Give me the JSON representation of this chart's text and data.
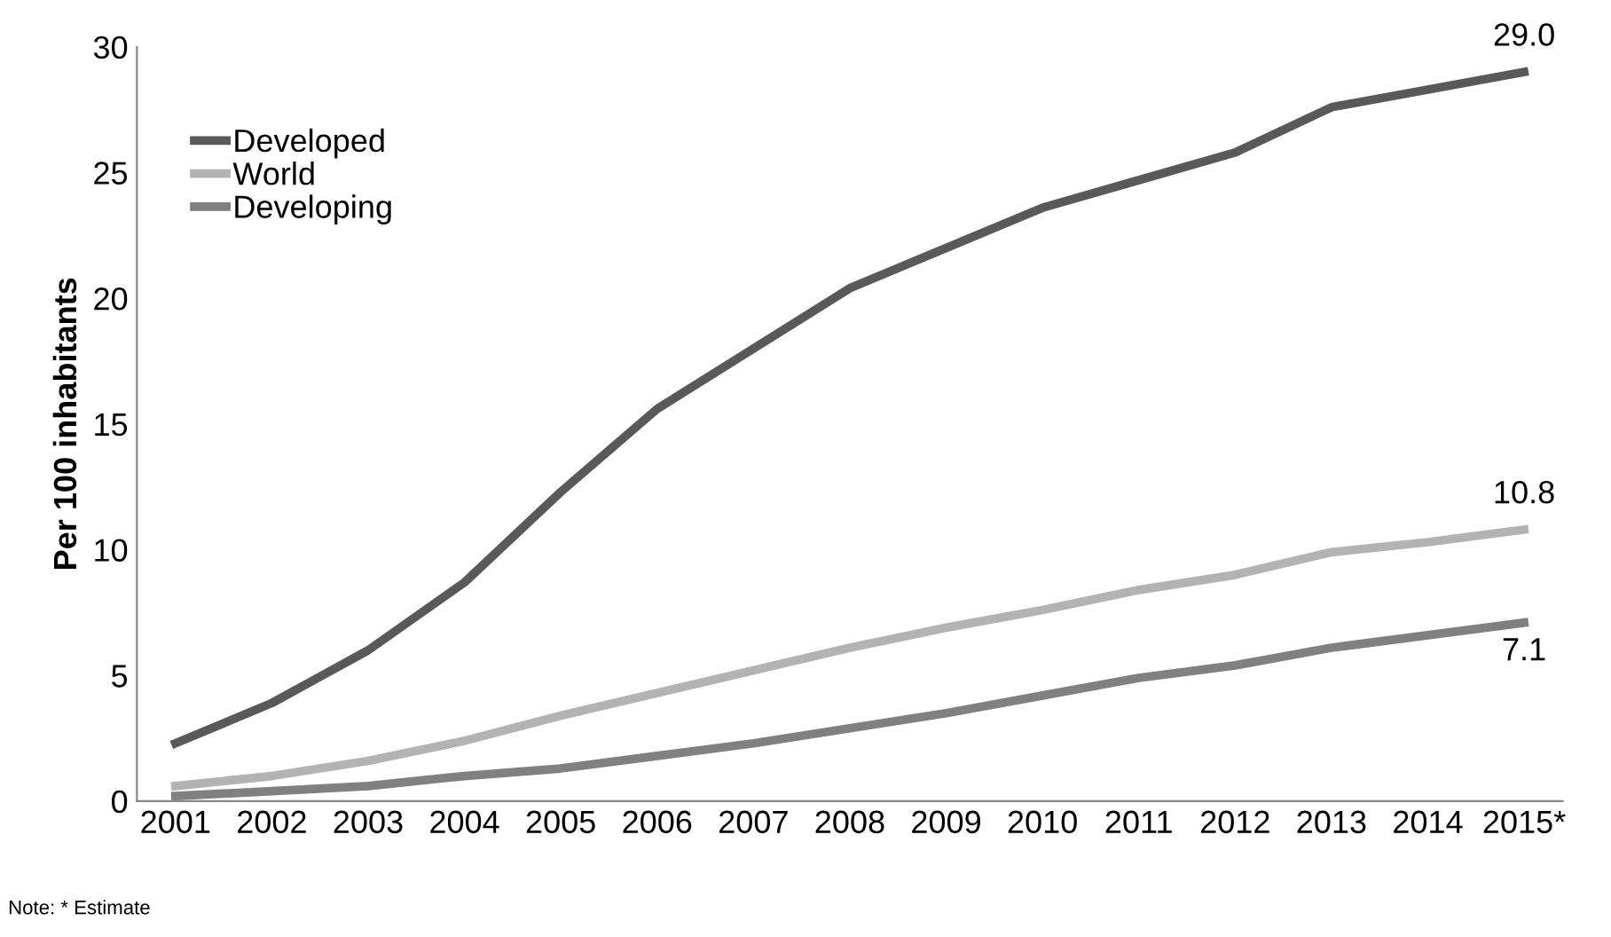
{
  "chart_data": {
    "type": "line",
    "ylabel": "Per 100 inhabitants",
    "categories": [
      "2001",
      "2002",
      "2003",
      "2004",
      "2005",
      "2006",
      "2007",
      "2008",
      "2009",
      "2010",
      "2011",
      "2012",
      "2013",
      "2014",
      "2015*"
    ],
    "series": [
      {
        "name": "Developed",
        "color": "#595959",
        "values": [
          2.3,
          3.9,
          6.0,
          8.7,
          12.3,
          15.6,
          18.0,
          20.4,
          22.0,
          23.6,
          24.7,
          25.8,
          27.6,
          28.3,
          29.0
        ],
        "value_labels": [
          null,
          null,
          null,
          null,
          null,
          null,
          null,
          null,
          null,
          null,
          null,
          null,
          null,
          null,
          "29.0"
        ]
      },
      {
        "name": "World",
        "color": "#b3b3b3",
        "values": [
          0.6,
          1.0,
          1.6,
          2.4,
          3.4,
          4.3,
          5.2,
          6.1,
          6.9,
          7.6,
          8.4,
          9.0,
          9.9,
          10.3,
          10.8
        ],
        "value_labels": [
          null,
          null,
          null,
          null,
          null,
          null,
          null,
          null,
          null,
          null,
          null,
          null,
          null,
          null,
          "10.8"
        ]
      },
      {
        "name": "Developing",
        "color": "#808080",
        "values": [
          0.2,
          0.4,
          0.6,
          1.0,
          1.3,
          1.8,
          2.3,
          2.9,
          3.5,
          4.2,
          4.9,
          5.4,
          6.1,
          6.6,
          7.1
        ],
        "value_labels": [
          null,
          null,
          null,
          null,
          null,
          null,
          null,
          null,
          null,
          null,
          null,
          null,
          null,
          null,
          "7.1"
        ]
      }
    ],
    "ylim": [
      0,
      30
    ],
    "yticks": [
      0,
      5,
      10,
      15,
      20,
      25,
      30
    ],
    "grid": false,
    "legend": "top left",
    "marker": "none",
    "line_style": "solid",
    "annotations": [
      "Note: * Estimate"
    ]
  }
}
